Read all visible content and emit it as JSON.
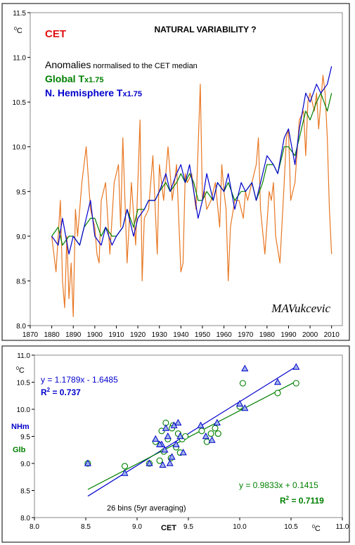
{
  "chart_data": [
    {
      "type": "line",
      "title": "NATURAL VARIABILITY  ?",
      "ylabel": "0C",
      "legend": {
        "placement": "top-left",
        "cet": "CET",
        "anomalies_big": "Anomalies",
        "anomalies_small": " normalised to the CET median",
        "global_big": "Global T",
        "global_small": "x1.75",
        "nh_big": "N. Hemisphere T",
        "nh_small": "x1.75"
      },
      "signature": "MAVukcevic",
      "xlim": [
        1870,
        2015
      ],
      "ylim": [
        8.0,
        11.5
      ],
      "x_ticks": [
        1870,
        1880,
        1890,
        1900,
        1910,
        1920,
        1930,
        1940,
        1950,
        1960,
        1970,
        1980,
        1990,
        2000,
        2010
      ],
      "y_ticks": [
        "8.0",
        "8.5",
        "9.0",
        "9.5",
        "10.0",
        "10.5",
        "11.0",
        "11.5"
      ],
      "series": [
        {
          "name": "CET",
          "color": "#e87722",
          "x": [
            1880,
            1882,
            1884,
            1885,
            1886,
            1887,
            1888,
            1889,
            1890,
            1891,
            1892,
            1893,
            1894,
            1896,
            1898,
            1900,
            1901,
            1902,
            1903,
            1905,
            1907,
            1909,
            1911,
            1912,
            1913,
            1915,
            1917,
            1919,
            1920,
            1921,
            1922,
            1923,
            1925,
            1927,
            1929,
            1930,
            1932,
            1934,
            1936,
            1938,
            1940,
            1941,
            1942,
            1943,
            1945,
            1947,
            1949,
            1950,
            1951,
            1952,
            1954,
            1956,
            1958,
            1959,
            1960,
            1961,
            1962,
            1963,
            1965,
            1967,
            1969,
            1970,
            1971,
            1973,
            1975,
            1976,
            1977,
            1979,
            1981,
            1982,
            1983,
            1984,
            1986,
            1988,
            1989,
            1990,
            1991,
            1993,
            1995,
            1997,
            1998,
            1999,
            2000,
            2002,
            2003,
            2004,
            2006,
            2007,
            2008,
            2009,
            2010
          ],
          "values": [
            9.0,
            8.6,
            9.4,
            8.5,
            8.2,
            9.0,
            8.3,
            8.7,
            8.1,
            9.3,
            9.0,
            9.3,
            9.6,
            10.0,
            9.3,
            9.1,
            8.8,
            8.7,
            9.4,
            9.6,
            8.8,
            9.6,
            9.8,
            9.1,
            10.1,
            8.7,
            9.6,
            8.9,
            9.6,
            10.3,
            8.5,
            9.2,
            9.3,
            9.9,
            8.8,
            9.8,
            9.4,
            10.0,
            9.4,
            9.8,
            8.6,
            8.7,
            9.7,
            9.6,
            9.7,
            9.3,
            10.7,
            9.4,
            9.5,
            9.3,
            9.4,
            9.6,
            9.1,
            9.8,
            9.5,
            9.3,
            8.5,
            9.1,
            9.4,
            9.4,
            9.2,
            9.5,
            9.4,
            9.6,
            9.8,
            10.1,
            9.3,
            8.8,
            9.5,
            9.4,
            9.6,
            9.0,
            8.7,
            9.6,
            10.1,
            10.2,
            9.4,
            9.6,
            10.3,
            10.4,
            9.9,
            10.5,
            10.6,
            10.4,
            10.6,
            10.2,
            10.8,
            10.6,
            10.1,
            9.3,
            8.8
          ]
        },
        {
          "name": "Global Tx1.75",
          "color": "#008000",
          "x": [
            1880,
            1883,
            1885,
            1888,
            1890,
            1893,
            1895,
            1898,
            1900,
            1903,
            1905,
            1908,
            1910,
            1913,
            1915,
            1918,
            1920,
            1923,
            1925,
            1928,
            1930,
            1933,
            1935,
            1938,
            1940,
            1942,
            1944,
            1946,
            1948,
            1950,
            1952,
            1955,
            1957,
            1960,
            1962,
            1965,
            1968,
            1970,
            1973,
            1975,
            1978,
            1980,
            1983,
            1985,
            1988,
            1990,
            1993,
            1995,
            1998,
            2000,
            2003,
            2005,
            2008,
            2010
          ],
          "values": [
            9.0,
            9.1,
            8.9,
            9.0,
            9.0,
            8.9,
            9.1,
            9.2,
            9.2,
            9.0,
            9.1,
            9.0,
            9.0,
            9.1,
            9.3,
            9.1,
            9.3,
            9.3,
            9.4,
            9.4,
            9.5,
            9.6,
            9.5,
            9.6,
            9.7,
            9.6,
            9.7,
            9.6,
            9.4,
            9.4,
            9.5,
            9.4,
            9.6,
            9.5,
            9.6,
            9.4,
            9.5,
            9.5,
            9.6,
            9.4,
            9.6,
            9.8,
            9.8,
            9.7,
            10.0,
            10.0,
            9.9,
            10.1,
            10.4,
            10.3,
            10.5,
            10.6,
            10.4,
            10.6
          ]
        },
        {
          "name": "N. Hemisphere Tx1.75",
          "color": "#0000cc",
          "x": [
            1880,
            1883,
            1885,
            1888,
            1890,
            1893,
            1895,
            1898,
            1900,
            1903,
            1905,
            1908,
            1910,
            1913,
            1915,
            1918,
            1920,
            1923,
            1925,
            1928,
            1930,
            1933,
            1935,
            1938,
            1940,
            1942,
            1944,
            1946,
            1948,
            1950,
            1952,
            1955,
            1957,
            1960,
            1962,
            1965,
            1968,
            1970,
            1973,
            1975,
            1978,
            1980,
            1983,
            1985,
            1988,
            1990,
            1993,
            1995,
            1998,
            2000,
            2003,
            2005,
            2008,
            2010
          ],
          "values": [
            9.0,
            8.9,
            9.2,
            8.8,
            9.0,
            8.9,
            9.1,
            9.4,
            9.0,
            8.9,
            9.1,
            8.9,
            9.0,
            9.1,
            9.3,
            9.0,
            9.2,
            9.3,
            9.4,
            9.4,
            9.5,
            9.7,
            9.5,
            9.7,
            9.8,
            9.6,
            9.8,
            9.5,
            9.2,
            9.4,
            9.7,
            9.4,
            9.6,
            9.5,
            9.7,
            9.3,
            9.6,
            9.5,
            9.6,
            9.4,
            9.7,
            9.9,
            9.8,
            9.7,
            10.1,
            10.2,
            9.8,
            10.2,
            10.6,
            10.5,
            10.7,
            10.6,
            10.7,
            10.9
          ]
        }
      ]
    },
    {
      "type": "scatter",
      "xlabel": "CET",
      "xunit": "0C",
      "ylabel": "0C",
      "side_labels": {
        "nh": "NHm",
        "glb": "Glb"
      },
      "note": "26 bins (5yr averaging)",
      "xlim": [
        8.0,
        11.0
      ],
      "ylim": [
        8.0,
        11.0
      ],
      "x_ticks": [
        "8.0",
        "8.5",
        "9.0",
        "9.5",
        "10.0",
        "10.5",
        "11.0"
      ],
      "y_ticks": [
        "8.0",
        "8.5",
        "9.0",
        "9.5",
        "10.0",
        "10.5",
        "11.0"
      ],
      "series": [
        {
          "name": "NHm",
          "color": "#0000cc",
          "marker": "triangle",
          "fit": {
            "slope": 1.1789,
            "intercept": -1.6485,
            "r2": 0.737,
            "equation": "y = 1.1789x - 1.6485",
            "r2_label": "R2 = 0.737"
          },
          "x": [
            8.52,
            8.88,
            9.12,
            9.18,
            9.24,
            9.25,
            9.27,
            9.28,
            9.3,
            9.32,
            9.34,
            9.36,
            9.38,
            9.4,
            9.42,
            9.45,
            9.62,
            9.67,
            9.73,
            9.78,
            10.0,
            10.05,
            10.37,
            10.05,
            10.55,
            9.22
          ],
          "y": [
            9.0,
            8.82,
            9.0,
            9.45,
            9.35,
            8.97,
            9.25,
            9.65,
            9.5,
            9.0,
            9.12,
            9.7,
            9.35,
            9.75,
            9.5,
            9.2,
            9.7,
            9.5,
            9.43,
            9.75,
            10.1,
            10.75,
            10.5,
            10.02,
            10.78,
            9.35
          ]
        },
        {
          "name": "Glb",
          "color": "#008000",
          "marker": "circle",
          "fit": {
            "slope": 0.9833,
            "intercept": 0.1415,
            "r2": 0.7119,
            "equation": "y = 0.9833x + 0.1415",
            "r2_label": "R2 = 0.7119"
          },
          "x": [
            8.52,
            8.88,
            9.12,
            9.18,
            9.22,
            9.24,
            9.26,
            9.28,
            9.3,
            9.33,
            9.35,
            9.38,
            9.4,
            9.44,
            9.47,
            9.63,
            9.68,
            9.72,
            9.76,
            9.79,
            10.0,
            10.03,
            10.37,
            10.55,
            9.34,
            9.42
          ],
          "y": [
            9.0,
            8.95,
            9.0,
            9.4,
            9.05,
            9.6,
            9.22,
            9.75,
            9.45,
            9.1,
            9.7,
            9.3,
            9.55,
            9.45,
            9.5,
            9.6,
            9.4,
            9.55,
            9.65,
            9.55,
            10.05,
            10.48,
            10.3,
            10.48,
            9.65,
            9.2
          ]
        }
      ]
    }
  ]
}
